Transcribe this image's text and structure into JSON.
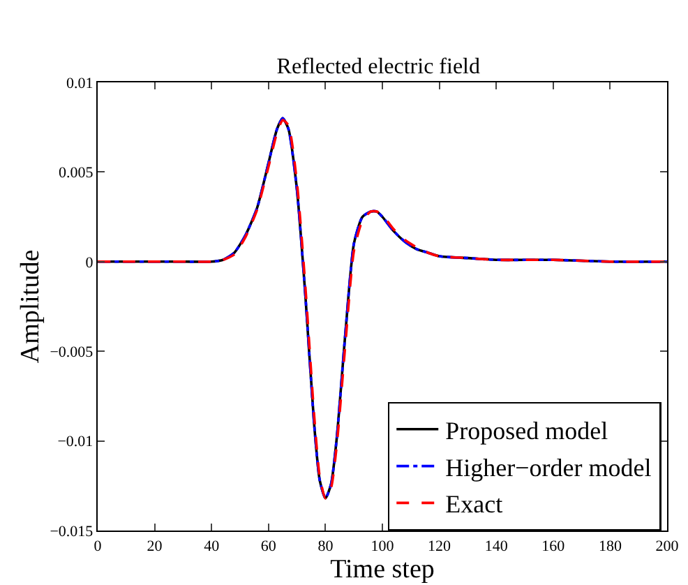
{
  "chart_data": {
    "type": "line",
    "title": "Reflected electric field",
    "xlabel": "Time step",
    "ylabel": "Amplitude",
    "x": [
      0,
      10,
      20,
      30,
      40,
      44,
      48,
      52,
      56,
      60,
      63,
      65,
      67,
      70,
      73,
      76,
      78,
      80,
      82,
      84,
      87,
      90,
      93,
      96,
      98,
      100,
      104,
      108,
      112,
      116,
      120,
      130,
      140,
      160,
      180,
      200
    ],
    "series": [
      {
        "name": "Proposed model",
        "color": "#000000",
        "line_style": "solid",
        "values": [
          0,
          0,
          0,
          0,
          0,
          0.0001,
          0.0005,
          0.0015,
          0.003,
          0.0055,
          0.0074,
          0.008,
          0.0074,
          0.004,
          -0.002,
          -0.009,
          -0.0122,
          -0.0132,
          -0.0124,
          -0.0098,
          -0.004,
          0.001,
          0.0025,
          0.0028,
          0.0028,
          0.0025,
          0.0017,
          0.0011,
          0.0007,
          0.0005,
          0.0003,
          0.0002,
          0.0001,
          0.0001,
          0,
          0
        ]
      },
      {
        "name": "Higher−order model",
        "color": "#0000ff",
        "line_style": "dashdot",
        "values": [
          0,
          0,
          0,
          0,
          0,
          0.0001,
          0.0005,
          0.0015,
          0.003,
          0.0055,
          0.0074,
          0.008,
          0.0074,
          0.004,
          -0.002,
          -0.009,
          -0.0122,
          -0.0132,
          -0.0124,
          -0.0098,
          -0.004,
          0.001,
          0.0025,
          0.0028,
          0.0028,
          0.0025,
          0.0017,
          0.0011,
          0.0007,
          0.0005,
          0.0003,
          0.0002,
          0.0001,
          0.0001,
          0,
          0
        ]
      },
      {
        "name": "Exact",
        "color": "#ff0000",
        "line_style": "dashed",
        "values": [
          0,
          0,
          0,
          0,
          0,
          0.0001,
          0.0004,
          0.0014,
          0.0029,
          0.0053,
          0.0072,
          0.0079,
          0.0076,
          0.0044,
          -0.0015,
          -0.0085,
          -0.012,
          -0.0132,
          -0.0126,
          -0.0102,
          -0.0046,
          0.0006,
          0.0023,
          0.0028,
          0.0028,
          0.0026,
          0.0018,
          0.0012,
          0.0008,
          0.0005,
          0.0003,
          0.0002,
          0.0001,
          0.0001,
          0,
          0
        ]
      }
    ],
    "xlim": [
      0,
      200
    ],
    "xticks": [
      0,
      20,
      40,
      60,
      80,
      100,
      120,
      140,
      160,
      180,
      200
    ],
    "ylim": [
      -0.015,
      0.01
    ],
    "yticks": [
      {
        "value": -0.015,
        "label": "−0.015"
      },
      {
        "value": -0.01,
        "label": "−0.01"
      },
      {
        "value": -0.005,
        "label": "−0.005"
      },
      0,
      0.005,
      0.01
    ],
    "legend": "bottom right",
    "grid": false,
    "marker": "none"
  }
}
